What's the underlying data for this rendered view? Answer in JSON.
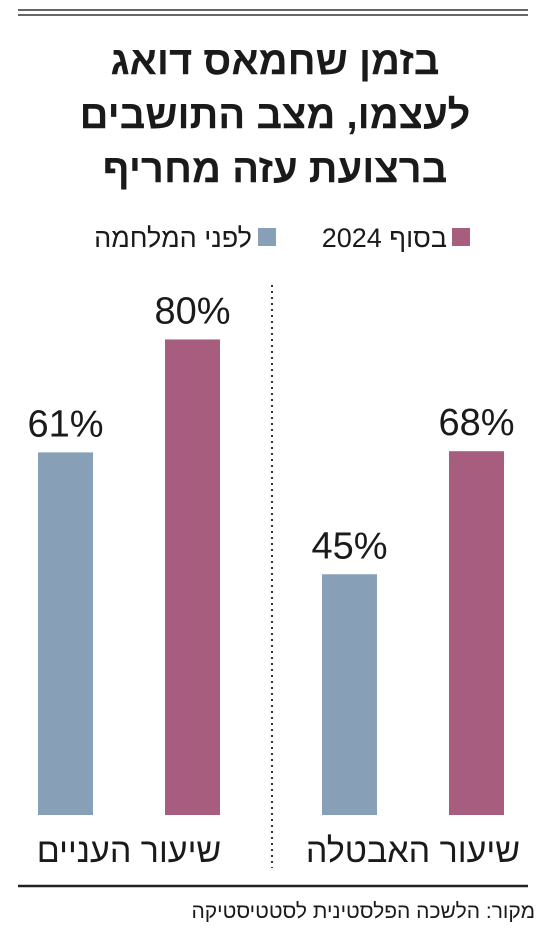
{
  "title": [
    "בזמן שחמאס דואג",
    "לעצמו, מצב התושבים",
    "ברצועת עזה מחריף"
  ],
  "source": "מקור: הלשכה הפלסטינית לסטטיסטיקה",
  "chart_data": [
    {
      "type": "bar",
      "categories": [
        "שיעור האבטלה"
      ],
      "series": [
        {
          "name": "לפני המלחמה",
          "color": "#87a0b8",
          "values": [
            45
          ],
          "value_labels": [
            "45%"
          ]
        },
        {
          "name": "בסוף 2024",
          "color": "#a65d7e",
          "values": [
            68
          ],
          "value_labels": [
            "68%"
          ]
        }
      ],
      "ylim": [
        0,
        100
      ]
    },
    {
      "type": "bar",
      "categories": [
        "שיעור העניים"
      ],
      "series": [
        {
          "name": "לפני המלחמה",
          "color": "#87a0b8",
          "values": [
            61
          ],
          "value_labels": [
            "61%"
          ]
        },
        {
          "name": "בסוף 2024",
          "color": "#a65d7e",
          "values": [
            80
          ],
          "value_labels": [
            "80%"
          ]
        }
      ],
      "ylim": [
        0,
        90
      ]
    }
  ]
}
